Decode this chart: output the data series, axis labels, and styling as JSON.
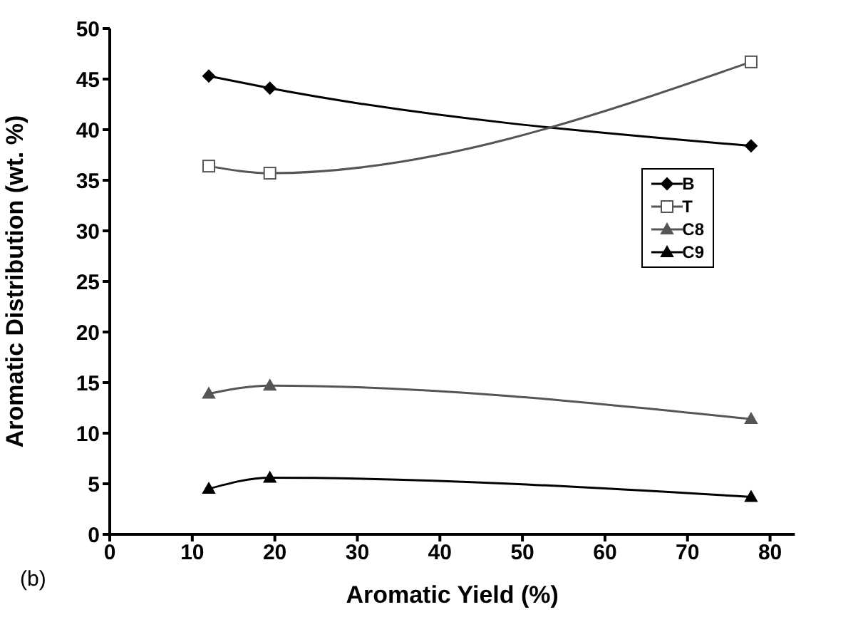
{
  "chart_data": {
    "type": "line",
    "xlabel": "Aromatic Yield (%)",
    "ylabel": "Aromatic Distribution (wt. %)",
    "annotations": [
      "(b)"
    ],
    "xlim": [
      0,
      83
    ],
    "xticks": [
      0,
      10,
      20,
      30,
      40,
      50,
      60,
      70,
      80
    ],
    "ylim": [
      0,
      50
    ],
    "yticks": [
      0,
      5,
      10,
      15,
      20,
      25,
      30,
      35,
      40,
      45,
      50
    ],
    "grid": false,
    "legend": "right",
    "x": [
      12,
      19.4,
      77.7
    ],
    "series": [
      {
        "name": "B",
        "color": "#000000",
        "marker": "diamond",
        "values": [
          45.3,
          44.1,
          38.4
        ]
      },
      {
        "name": "T",
        "color": "#555555",
        "marker": "square",
        "values": [
          36.4,
          35.7,
          46.7
        ]
      },
      {
        "name": "C8",
        "color": "#555555",
        "marker": "triangle",
        "values": [
          13.9,
          14.7,
          11.4
        ]
      },
      {
        "name": "C9",
        "color": "#000000",
        "marker": "triangle",
        "values": [
          4.5,
          5.6,
          3.7
        ]
      }
    ]
  }
}
